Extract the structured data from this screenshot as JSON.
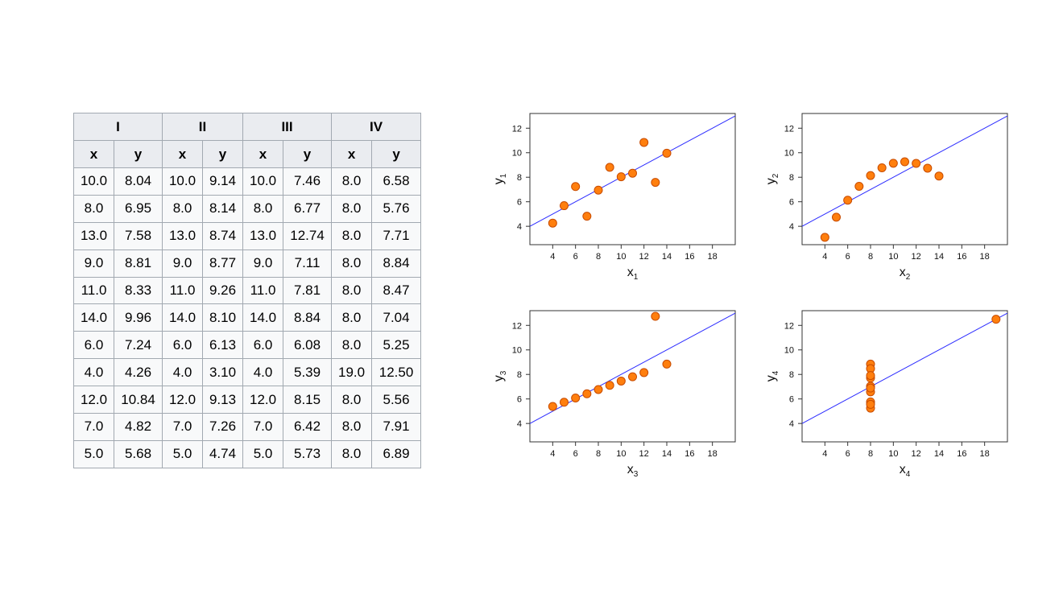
{
  "table": {
    "groups": [
      "I",
      "II",
      "III",
      "IV"
    ],
    "subheaders": [
      "x",
      "y",
      "x",
      "y",
      "x",
      "y",
      "x",
      "y"
    ],
    "rows": [
      [
        "10.0",
        "8.04",
        "10.0",
        "9.14",
        "10.0",
        "7.46",
        "8.0",
        "6.58"
      ],
      [
        "8.0",
        "6.95",
        "8.0",
        "8.14",
        "8.0",
        "6.77",
        "8.0",
        "5.76"
      ],
      [
        "13.0",
        "7.58",
        "13.0",
        "8.74",
        "13.0",
        "12.74",
        "8.0",
        "7.71"
      ],
      [
        "9.0",
        "8.81",
        "9.0",
        "8.77",
        "9.0",
        "7.11",
        "8.0",
        "8.84"
      ],
      [
        "11.0",
        "8.33",
        "11.0",
        "9.26",
        "11.0",
        "7.81",
        "8.0",
        "8.47"
      ],
      [
        "14.0",
        "9.96",
        "14.0",
        "8.10",
        "14.0",
        "8.84",
        "8.0",
        "7.04"
      ],
      [
        "6.0",
        "7.24",
        "6.0",
        "6.13",
        "6.0",
        "6.08",
        "8.0",
        "5.25"
      ],
      [
        "4.0",
        "4.26",
        "4.0",
        "3.10",
        "4.0",
        "5.39",
        "19.0",
        "12.50"
      ],
      [
        "12.0",
        "10.84",
        "12.0",
        "9.13",
        "12.0",
        "8.15",
        "8.0",
        "5.56"
      ],
      [
        "7.0",
        "4.82",
        "7.0",
        "7.26",
        "7.0",
        "6.42",
        "8.0",
        "7.91"
      ],
      [
        "5.0",
        "5.68",
        "5.0",
        "4.74",
        "5.0",
        "5.73",
        "8.0",
        "6.89"
      ]
    ]
  },
  "colors": {
    "point_fill": "#ff7f0e",
    "point_stroke": "#c84b00",
    "fit_line": "#2b2bff",
    "frame": "#333333"
  },
  "chart_data": [
    {
      "type": "scatter",
      "xlabel": "x",
      "xlabel_sub": "1",
      "ylabel": "y",
      "ylabel_sub": "1",
      "xlim": [
        2,
        20
      ],
      "ylim": [
        2.5,
        13.2
      ],
      "xticks": [
        4,
        6,
        8,
        10,
        12,
        14,
        16,
        18
      ],
      "yticks": [
        4,
        6,
        8,
        10,
        12
      ],
      "x": [
        10,
        8,
        13,
        9,
        11,
        14,
        6,
        4,
        12,
        7,
        5
      ],
      "y": [
        8.04,
        6.95,
        7.58,
        8.81,
        8.33,
        9.96,
        7.24,
        4.26,
        10.84,
        4.82,
        5.68
      ],
      "fit": {
        "intercept": 3.0,
        "slope": 0.5
      }
    },
    {
      "type": "scatter",
      "xlabel": "x",
      "xlabel_sub": "2",
      "ylabel": "y",
      "ylabel_sub": "2",
      "xlim": [
        2,
        20
      ],
      "ylim": [
        2.5,
        13.2
      ],
      "xticks": [
        4,
        6,
        8,
        10,
        12,
        14,
        16,
        18
      ],
      "yticks": [
        4,
        6,
        8,
        10,
        12
      ],
      "x": [
        10,
        8,
        13,
        9,
        11,
        14,
        6,
        4,
        12,
        7,
        5
      ],
      "y": [
        9.14,
        8.14,
        8.74,
        8.77,
        9.26,
        8.1,
        6.13,
        3.1,
        9.13,
        7.26,
        4.74
      ],
      "fit": {
        "intercept": 3.0,
        "slope": 0.5
      }
    },
    {
      "type": "scatter",
      "xlabel": "x",
      "xlabel_sub": "3",
      "ylabel": "y",
      "ylabel_sub": "3",
      "xlim": [
        2,
        20
      ],
      "ylim": [
        2.5,
        13.2
      ],
      "xticks": [
        4,
        6,
        8,
        10,
        12,
        14,
        16,
        18
      ],
      "yticks": [
        4,
        6,
        8,
        10,
        12
      ],
      "x": [
        10,
        8,
        13,
        9,
        11,
        14,
        6,
        4,
        12,
        7,
        5
      ],
      "y": [
        7.46,
        6.77,
        12.74,
        7.11,
        7.81,
        8.84,
        6.08,
        5.39,
        8.15,
        6.42,
        5.73
      ],
      "fit": {
        "intercept": 3.0,
        "slope": 0.5
      }
    },
    {
      "type": "scatter",
      "xlabel": "x",
      "xlabel_sub": "4",
      "ylabel": "y",
      "ylabel_sub": "4",
      "xlim": [
        2,
        20
      ],
      "ylim": [
        2.5,
        13.2
      ],
      "xticks": [
        4,
        6,
        8,
        10,
        12,
        14,
        16,
        18
      ],
      "yticks": [
        4,
        6,
        8,
        10,
        12
      ],
      "x": [
        8,
        8,
        8,
        8,
        8,
        8,
        8,
        19,
        8,
        8,
        8
      ],
      "y": [
        6.58,
        5.76,
        7.71,
        8.84,
        8.47,
        7.04,
        5.25,
        12.5,
        5.56,
        7.91,
        6.89
      ],
      "fit": {
        "intercept": 3.0,
        "slope": 0.5
      }
    }
  ]
}
